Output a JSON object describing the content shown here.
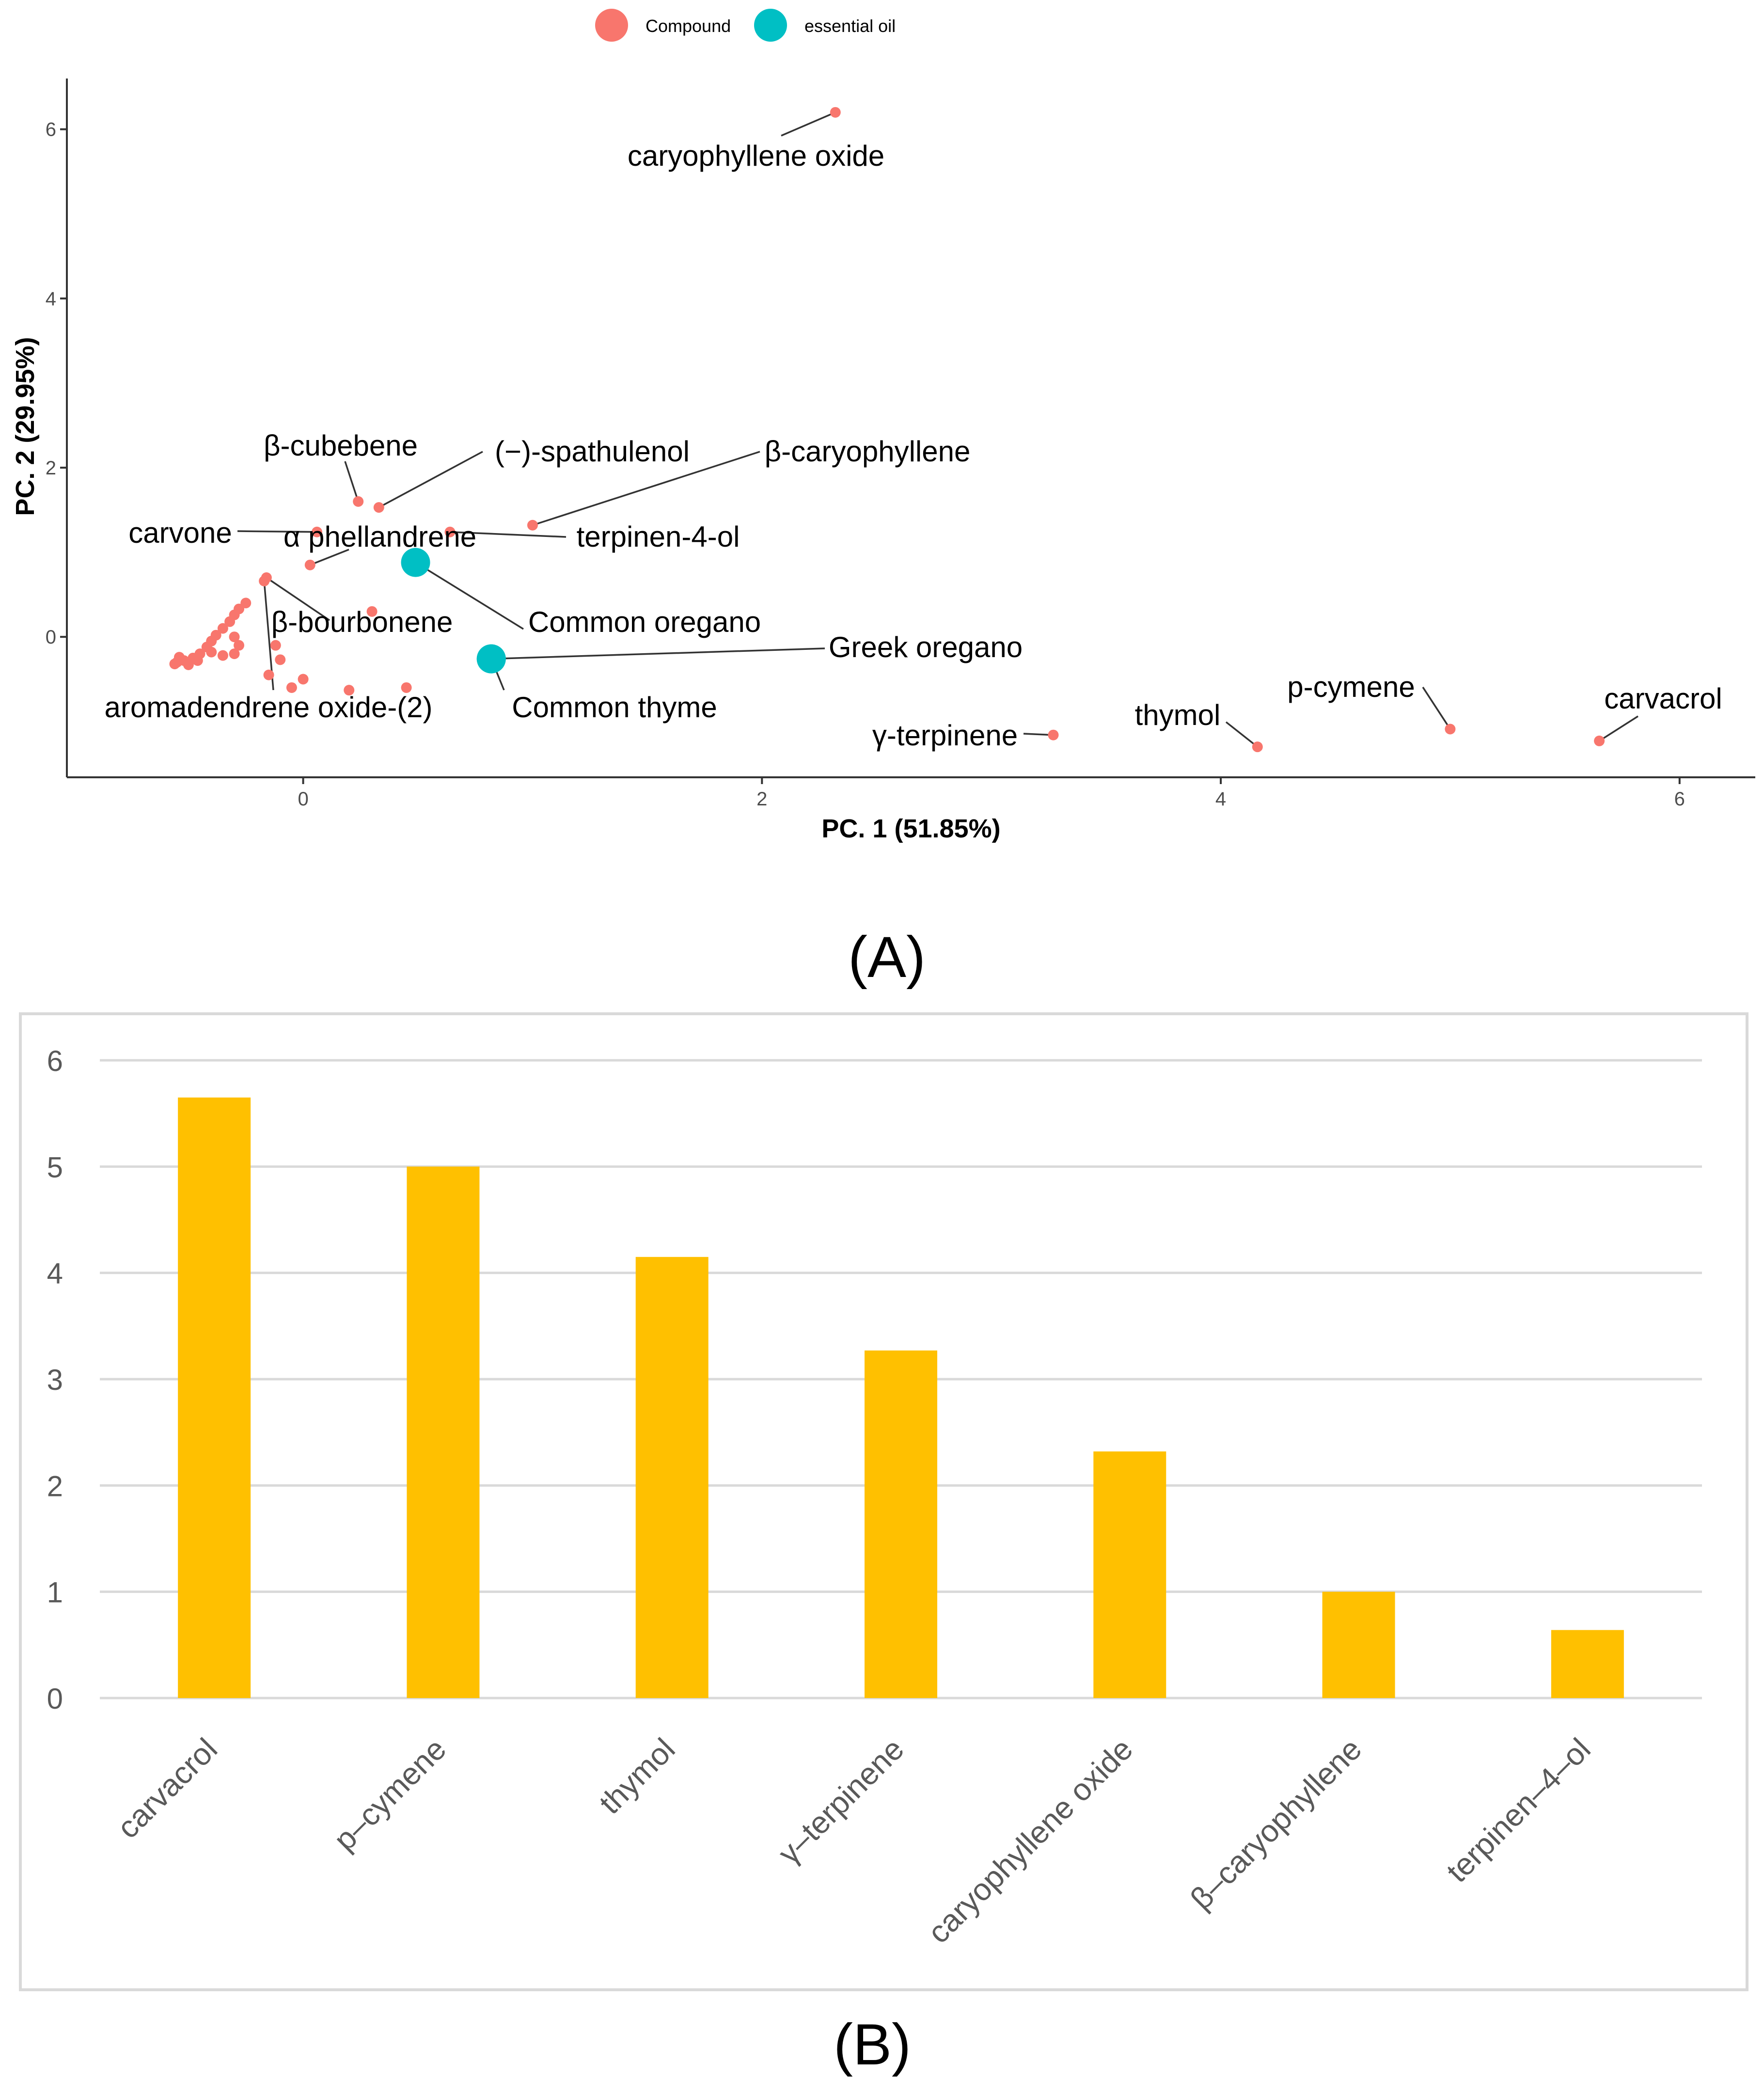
{
  "chart_data": [
    {
      "type": "scatter",
      "panel_label": "(A)",
      "xlabel": "PC. 1 (51.85%)",
      "ylabel": "PC. 2 (29.95%)",
      "xlim": [
        -1.03,
        6.33
      ],
      "ylim": [
        -1.66,
        6.6
      ],
      "xticks": [
        0,
        2,
        4,
        6
      ],
      "yticks": [
        0,
        2,
        4,
        6
      ],
      "grid": false,
      "legend_position": "top",
      "legend": [
        {
          "name": "Compound",
          "color": "#F8766D"
        },
        {
          "name": "essential oil",
          "color": "#00BFC4"
        }
      ],
      "series": [
        {
          "name": "Compound",
          "color": "#F8766D",
          "points": [
            {
              "label": "caryophyllene oxide",
              "x": 2.32,
              "y": 6.2
            },
            {
              "label": "carvacrol",
              "x": 5.65,
              "y": -1.23
            },
            {
              "label": "p-cymene",
              "x": 5.0,
              "y": -1.09
            },
            {
              "label": "thymol",
              "x": 4.16,
              "y": -1.3
            },
            {
              "label": "γ-terpinene",
              "x": 3.27,
              "y": -1.16
            },
            {
              "label": "β-caryophyllene",
              "x": 1.0,
              "y": 1.32
            },
            {
              "label": "terpinen-4-ol",
              "x": 0.64,
              "y": 1.24
            },
            {
              "label": "(−)-spathulenol",
              "x": 0.33,
              "y": 1.53
            },
            {
              "label": "β-cubebene",
              "x": 0.24,
              "y": 1.6
            },
            {
              "label": "carvone",
              "x": 0.06,
              "y": 1.24
            },
            {
              "label": "α phellandrene",
              "x": 0.03,
              "y": 0.85
            },
            {
              "label": "β-bourbonene",
              "x": -0.16,
              "y": 0.7
            },
            {
              "label": "aromadendrene oxide-(2)",
              "x": -0.17,
              "y": 0.66
            },
            {
              "label": "",
              "x": 0.3,
              "y": 0.3
            },
            {
              "label": "",
              "x": 0.45,
              "y": -0.6
            },
            {
              "label": "",
              "x": 0.2,
              "y": -0.63
            },
            {
              "label": "",
              "x": -0.1,
              "y": -0.27
            },
            {
              "label": "",
              "x": -0.05,
              "y": -0.6
            },
            {
              "label": "",
              "x": 0.0,
              "y": -0.5
            },
            {
              "label": "",
              "x": -0.12,
              "y": -0.1
            },
            {
              "label": "",
              "x": -0.15,
              "y": -0.45
            },
            {
              "label": "",
              "x": -0.3,
              "y": -0.2
            },
            {
              "label": "",
              "x": -0.28,
              "y": -0.1
            },
            {
              "label": "",
              "x": -0.35,
              "y": -0.22
            },
            {
              "label": "",
              "x": -0.5,
              "y": -0.3
            },
            {
              "label": "",
              "x": -0.52,
              "y": -0.28
            },
            {
              "label": "",
              "x": -0.48,
              "y": -0.25
            },
            {
              "label": "",
              "x": -0.55,
              "y": -0.3
            },
            {
              "label": "",
              "x": -0.45,
              "y": -0.2
            },
            {
              "label": "",
              "x": -0.42,
              "y": -0.12
            },
            {
              "label": "",
              "x": -0.4,
              "y": -0.05
            },
            {
              "label": "",
              "x": -0.38,
              "y": 0.02
            },
            {
              "label": "",
              "x": -0.35,
              "y": 0.1
            },
            {
              "label": "",
              "x": -0.32,
              "y": 0.18
            },
            {
              "label": "",
              "x": -0.3,
              "y": 0.26
            },
            {
              "label": "",
              "x": -0.28,
              "y": 0.33
            },
            {
              "label": "",
              "x": -0.3,
              "y": 0.0
            },
            {
              "label": "",
              "x": -0.25,
              "y": 0.4
            },
            {
              "label": "",
              "x": -0.4,
              "y": -0.18
            },
            {
              "label": "",
              "x": -0.46,
              "y": -0.28
            },
            {
              "label": "",
              "x": -0.5,
              "y": -0.33
            },
            {
              "label": "",
              "x": -0.56,
              "y": -0.32
            },
            {
              "label": "",
              "x": -0.54,
              "y": -0.24
            }
          ]
        },
        {
          "name": "essential oil",
          "color": "#00BFC4",
          "points": [
            {
              "label": "Common oregano",
              "x": 0.49,
              "y": 0.88
            },
            {
              "label": "Common thyme",
              "x": 0.82,
              "y": -0.26
            },
            {
              "label": "Greek oregano",
              "x": 0.82,
              "y": -0.26
            }
          ]
        }
      ]
    },
    {
      "type": "bar",
      "panel_label": "(B)",
      "categories": [
        "carvacrol",
        "p–cymene",
        "thymol",
        "γ–terpinene",
        "caryophyllene oxide",
        "β–caryophyllene",
        "terpinen–4–ol"
      ],
      "values": [
        5.65,
        5.0,
        4.15,
        3.27,
        2.32,
        1.0,
        0.64
      ],
      "color": "#FFC000",
      "ylim": [
        0,
        6
      ],
      "yticks": [
        0,
        1,
        2,
        3,
        4,
        5,
        6
      ],
      "grid": true,
      "title": "",
      "xlabel": "",
      "ylabel": ""
    }
  ]
}
